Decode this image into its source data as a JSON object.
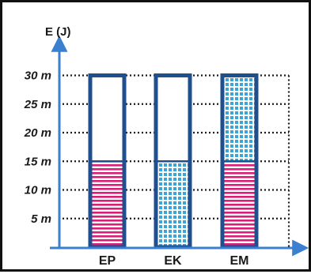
{
  "chart_data": {
    "type": "bar",
    "title": "",
    "ylabel": "E (J)",
    "xlabel": "",
    "categories": [
      "EP",
      "EK",
      "EM"
    ],
    "ytick_labels": [
      "5 m",
      "10 m",
      "15 m",
      "20 m",
      "25 m",
      "30 m"
    ],
    "ytick_values": [
      5,
      10,
      15,
      20,
      25,
      30
    ],
    "ylim": [
      0,
      33
    ],
    "grid": "dotted horizontal lines at ticks",
    "bars": [
      {
        "category": "EP",
        "total": 30,
        "segments": [
          {
            "from": 0,
            "to": 15,
            "pattern": "pink-stripes"
          },
          {
            "from": 15,
            "to": 30,
            "pattern": "empty"
          }
        ]
      },
      {
        "category": "EK",
        "total": 30,
        "segments": [
          {
            "from": 0,
            "to": 15,
            "pattern": "blue-dots"
          },
          {
            "from": 15,
            "to": 30,
            "pattern": "empty"
          }
        ]
      },
      {
        "category": "EM",
        "total": 30,
        "segments": [
          {
            "from": 0,
            "to": 15,
            "pattern": "pink-stripes"
          },
          {
            "from": 15,
            "to": 30,
            "pattern": "blue-dots"
          }
        ]
      }
    ],
    "colors": {
      "axis": "#3a7fd0",
      "bar_outline": "#1f4f8f",
      "pink": "#d81f78",
      "blue": "#3aa6d8",
      "grid": "#1a1a1a"
    }
  }
}
